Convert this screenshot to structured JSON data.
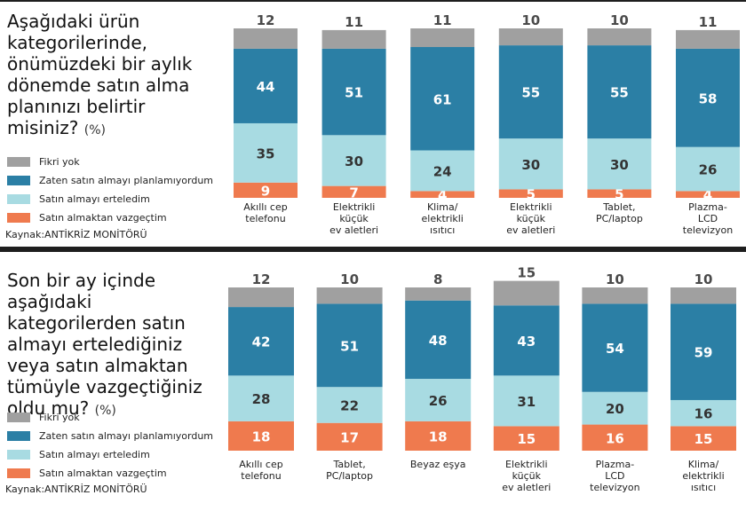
{
  "colors": {
    "no_opinion": "#a0a0a0",
    "not_planning": "#2b7fa5",
    "postponed": "#a8dbe2",
    "gave_up": "#ef7a4e"
  },
  "chart_data": [
    {
      "type": "bar",
      "stacked": true,
      "title": "Aşağıdaki ürün kategorilerinde, önümüzdeki bir aylık dönemde satın alma planınızı belirtir misiniz?",
      "unit": "(%)",
      "source": "Kaynak:ANTİKRİZ MONİTÖRÜ",
      "legend": [
        "Fikri yok",
        "Zaten satın almayı planlamıyordum",
        "Satın almayı erteledim",
        "Satın almaktan vazgeçtim"
      ],
      "categories": [
        [
          "Akıllı cep",
          "telefonu"
        ],
        [
          "Elektrikli",
          "küçük",
          "ev aletleri"
        ],
        [
          "Klima/",
          "elektrikli",
          "ısıtıcı"
        ],
        [
          "Elektrikli",
          "küçük",
          "ev aletleri"
        ],
        [
          "Tablet,",
          "PC/laptop"
        ],
        [
          "Plazma-",
          "LCD",
          "televizyon"
        ]
      ],
      "series": [
        {
          "name": "Satın almaktan vazgeçtim",
          "key": "gave_up",
          "values": [
            9,
            7,
            4,
            5,
            5,
            4
          ]
        },
        {
          "name": "Satın almayı erteledim",
          "key": "postponed",
          "values": [
            35,
            30,
            24,
            30,
            30,
            26
          ]
        },
        {
          "name": "Zaten satın almayı planlamıyordum",
          "key": "not_planning",
          "values": [
            44,
            51,
            61,
            55,
            55,
            58
          ]
        },
        {
          "name": "Fikri yok",
          "key": "no_opinion",
          "values": [
            12,
            11,
            11,
            10,
            10,
            11
          ]
        }
      ]
    },
    {
      "type": "bar",
      "stacked": true,
      "title": "Son bir ay içinde aşağıdaki kategorilerden satın almayı ertelediğiniz veya satın almaktan tümüyle vazgeçtiğiniz oldu mu?",
      "unit": "(%)",
      "source": "Kaynak:ANTİKRİZ MONİTÖRÜ",
      "legend": [
        "Fikri yok",
        "Zaten satın almayı planlamıyordum",
        "Satın almayı erteledim",
        "Satın almaktan vazgeçtim"
      ],
      "categories": [
        [
          "Akıllı cep",
          "telefonu"
        ],
        [
          "Tablet,",
          "PC/laptop"
        ],
        [
          "Beyaz eşya"
        ],
        [
          "Elektrikli",
          "küçük",
          "ev aletleri"
        ],
        [
          "Plazma-",
          "LCD",
          "televizyon"
        ],
        [
          "Klima/",
          "elektrikli",
          "ısıtıcı"
        ]
      ],
      "series": [
        {
          "name": "Satın almaktan vazgeçtim",
          "key": "gave_up",
          "values": [
            18,
            17,
            18,
            15,
            16,
            15
          ]
        },
        {
          "name": "Satın almayı erteledim",
          "key": "postponed",
          "values": [
            28,
            22,
            26,
            31,
            20,
            16
          ]
        },
        {
          "name": "Zaten satın almayı planlamıyordum",
          "key": "not_planning",
          "values": [
            42,
            51,
            48,
            43,
            54,
            59
          ]
        },
        {
          "name": "Fikri yok",
          "key": "no_opinion",
          "values": [
            12,
            10,
            8,
            15,
            10,
            10
          ]
        }
      ]
    }
  ]
}
